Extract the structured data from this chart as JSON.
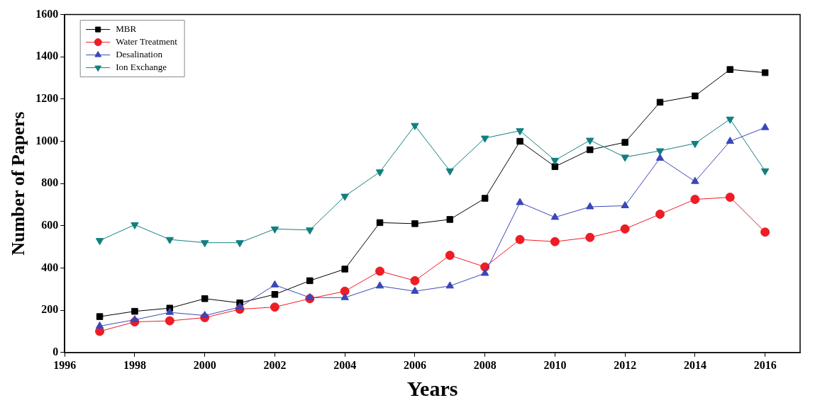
{
  "chart_data": {
    "type": "line",
    "xlabel": "Years",
    "ylabel": "Number of Papers",
    "x": [
      1997,
      1998,
      1999,
      2000,
      2001,
      2002,
      2003,
      2004,
      2005,
      2006,
      2007,
      2008,
      2009,
      2010,
      2011,
      2012,
      2013,
      2014,
      2015,
      2016
    ],
    "series": [
      {
        "name": "MBR",
        "color": "#000000",
        "marker": "square",
        "values": [
          170,
          195,
          210,
          255,
          235,
          275,
          340,
          395,
          615,
          610,
          630,
          730,
          1000,
          880,
          960,
          995,
          1185,
          1215,
          1340,
          1325
        ]
      },
      {
        "name": "Water Treatment",
        "color": "#ee1c24",
        "marker": "circle",
        "values": [
          100,
          145,
          150,
          165,
          205,
          215,
          255,
          290,
          385,
          340,
          460,
          405,
          535,
          525,
          545,
          585,
          655,
          725,
          735,
          570
        ]
      },
      {
        "name": "Desalination",
        "color": "#3a47b8",
        "marker": "triangle",
        "values": [
          125,
          155,
          190,
          175,
          215,
          320,
          260,
          260,
          315,
          290,
          315,
          375,
          710,
          640,
          690,
          695,
          920,
          810,
          1000,
          1065
        ]
      },
      {
        "name": "Ion Exchange",
        "color": "#117f80",
        "marker": "triangle-down",
        "values": [
          530,
          605,
          535,
          520,
          520,
          585,
          580,
          740,
          855,
          1075,
          860,
          1015,
          1050,
          910,
          1005,
          925,
          955,
          990,
          1105,
          860
        ]
      }
    ],
    "xlim": [
      1996,
      2017
    ],
    "xticks": [
      1996,
      1998,
      2000,
      2002,
      2004,
      2006,
      2008,
      2010,
      2012,
      2014,
      2016
    ],
    "ylim": [
      0,
      1600
    ],
    "yticks": [
      0,
      200,
      400,
      600,
      800,
      1000,
      1200,
      1400,
      1600
    ],
    "grid": false,
    "legend": "top left",
    "line_style": "solid"
  }
}
